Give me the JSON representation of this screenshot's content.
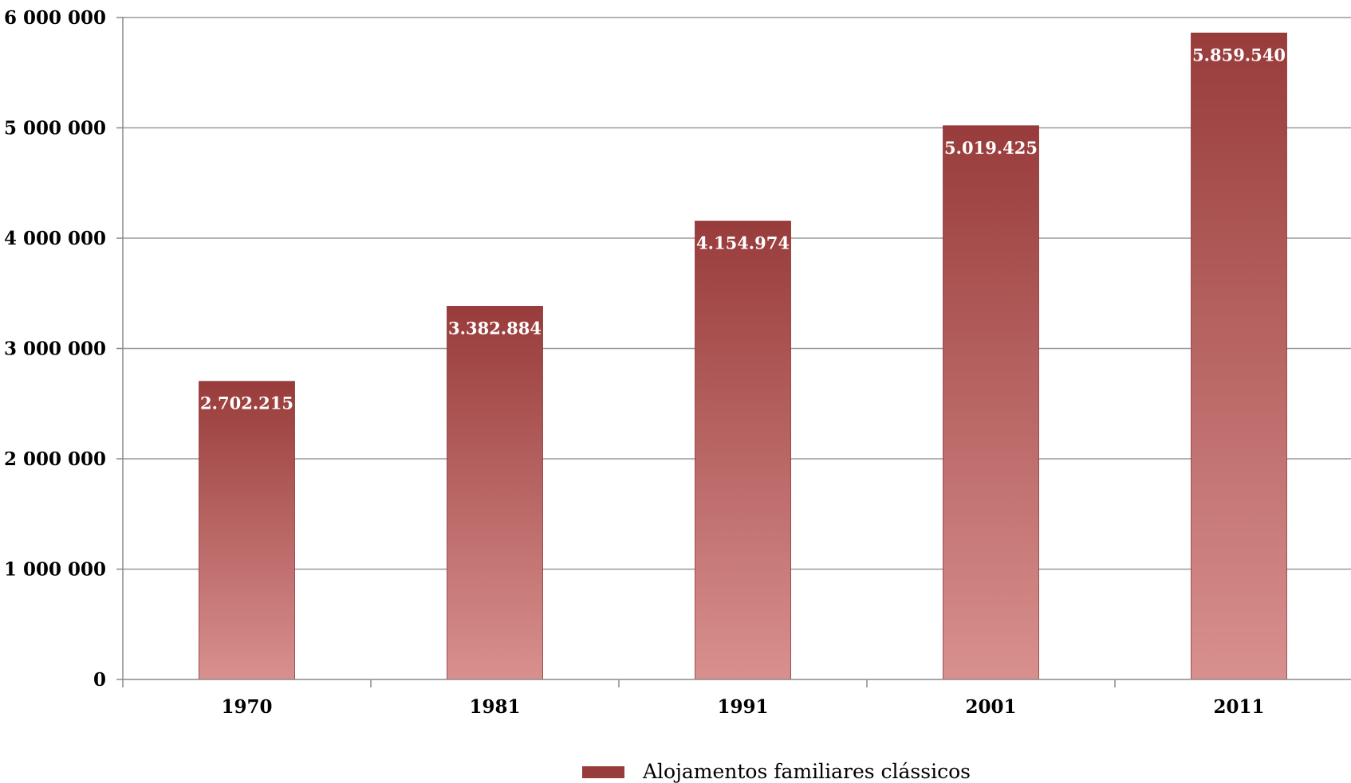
{
  "chart_data": {
    "type": "bar",
    "categories": [
      "1970",
      "1981",
      "1991",
      "2001",
      "2011"
    ],
    "series": [
      {
        "name": "Alojamentos familiares clássicos",
        "values": [
          2702215,
          3382884,
          4154974,
          5019425,
          5859540
        ],
        "data_labels": [
          "2.702.215",
          "3.382.884",
          "4.154.974",
          "5.019.425",
          "5.859.540"
        ]
      }
    ],
    "yticks": [
      0,
      1000000,
      2000000,
      3000000,
      4000000,
      5000000,
      6000000
    ],
    "ytick_labels": [
      "0",
      "1 000 000",
      "2 000 000",
      "3 000 000",
      "4 000 000",
      "5 000 000",
      "6 000 000"
    ],
    "ylim": [
      0,
      6000000
    ],
    "title": "",
    "xlabel": "",
    "ylabel": "",
    "grid": true,
    "legend": {
      "position": "bottom",
      "entries": [
        "Alojamentos familiares clássicos"
      ]
    },
    "colors": {
      "bar_top": "#983c3b",
      "bar_bottom": "#d8908e",
      "gridline": "#9a9a9a",
      "axis": "#8a8a8a"
    }
  }
}
